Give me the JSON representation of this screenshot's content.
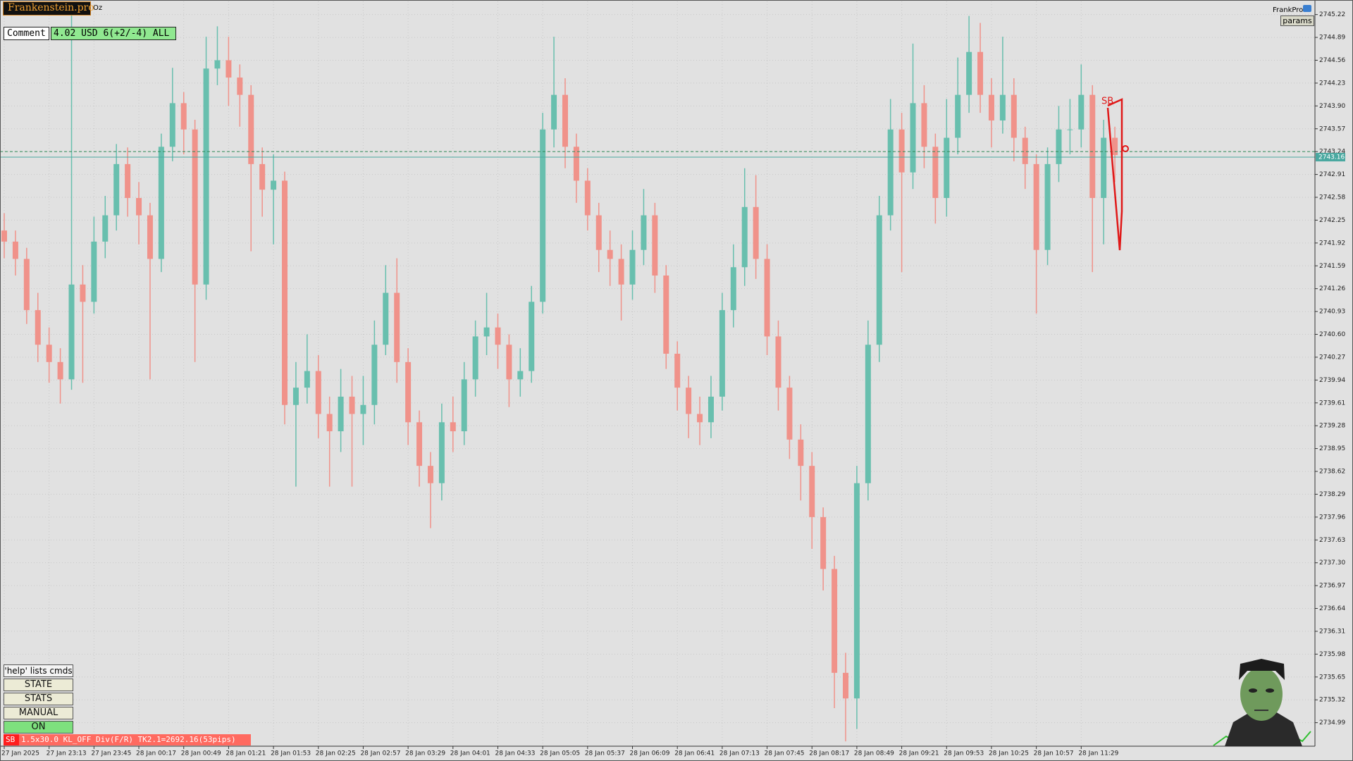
{
  "chart_data": {
    "type": "candlestick",
    "categories": [
      "27 Jan 2025",
      null,
      null,
      null,
      "27 Jan 23:13",
      null,
      null,
      null,
      "27 Jan 23:45",
      null,
      null,
      null,
      "28 Jan 00:17",
      null,
      null,
      null,
      "28 Jan 00:49",
      null,
      null,
      null,
      "28 Jan 01:21",
      null,
      null,
      null,
      "28 Jan 01:53",
      null,
      null,
      null,
      "28 Jan 02:25",
      null,
      null,
      null,
      "28 Jan 02:57",
      null,
      null,
      null,
      "28 Jan 03:29",
      null,
      null,
      null,
      "28 Jan 04:01",
      null,
      null,
      null,
      "28 Jan 04:33",
      null,
      null,
      null,
      "28 Jan 05:05",
      null,
      null,
      null,
      "28 Jan 05:37",
      null,
      null,
      null,
      "28 Jan 06:09",
      null,
      null,
      null,
      "28 Jan 06:41",
      null,
      null,
      null,
      "28 Jan 07:13",
      null,
      null,
      null,
      "28 Jan 07:45",
      null,
      null,
      null,
      "28 Jan 08:17",
      null,
      null,
      null,
      "28 Jan 08:49",
      null,
      null,
      null,
      "28 Jan 09:21",
      null,
      null,
      null,
      "28 Jan 09:53",
      null,
      null,
      null,
      "28 Jan 10:25",
      null,
      null,
      null,
      "28 Jan 10:57",
      null,
      null,
      null,
      "28 Jan 11:29",
      null,
      null,
      null
    ],
    "open": [
      2742.1,
      2741.94,
      2741.69,
      2740.95,
      2740.45,
      2740.2,
      2739.95,
      2741.32,
      2741.07,
      2741.94,
      2742.32,
      2743.06,
      2742.57,
      2742.32,
      2741.69,
      2743.31,
      2743.94,
      2743.56,
      2741.32,
      2744.44,
      2744.56,
      2744.31,
      2744.06,
      2743.06,
      2742.69,
      2742.82,
      2739.58,
      2739.83,
      2740.07,
      2739.45,
      2739.2,
      2739.7,
      2739.45,
      2739.58,
      2740.45,
      2741.2,
      2740.2,
      2739.33,
      2738.7,
      2738.45,
      2739.33,
      2739.2,
      2739.95,
      2740.57,
      2740.7,
      2740.45,
      2739.95,
      2740.07,
      2741.07,
      2743.56,
      2744.06,
      2743.31,
      2742.82,
      2742.32,
      2741.82,
      2741.69,
      2741.32,
      2741.82,
      2742.32,
      2741.45,
      2740.32,
      2739.83,
      2739.45,
      2739.33,
      2739.7,
      2740.95,
      2741.57,
      2742.44,
      2741.69,
      2740.57,
      2739.83,
      2739.08,
      2738.7,
      2737.96,
      2737.21,
      2735.71,
      2735.34,
      2738.45,
      2740.45,
      2742.32,
      2743.56,
      2742.94,
      2743.94,
      2743.31,
      2742.57,
      2743.44,
      2744.06,
      2744.68,
      2744.06,
      2743.69,
      2744.06,
      2743.44,
      2743.06,
      2741.82,
      2743.06,
      2743.56,
      2743.56,
      2744.06,
      2742.57,
      2743.44
    ],
    "high": [
      2742.35,
      2742.1,
      2741.85,
      2741.2,
      2740.7,
      2740.4,
      2745.3,
      2741.6,
      2742.3,
      2742.6,
      2743.35,
      2743.3,
      2742.8,
      2742.5,
      2743.5,
      2744.45,
      2744.1,
      2743.7,
      2744.9,
      2745.05,
      2744.9,
      2744.5,
      2744.2,
      2743.3,
      2743.2,
      2742.95,
      2740.2,
      2740.6,
      2740.3,
      2739.7,
      2740.1,
      2740.0,
      2740.0,
      2740.8,
      2741.6,
      2741.7,
      2740.4,
      2739.5,
      2738.9,
      2739.6,
      2739.7,
      2740.2,
      2740.8,
      2741.2,
      2740.9,
      2740.6,
      2740.4,
      2741.3,
      2743.8,
      2744.9,
      2744.3,
      2743.5,
      2743.0,
      2742.5,
      2742.1,
      2741.9,
      2742.1,
      2742.7,
      2742.5,
      2741.6,
      2740.5,
      2740.0,
      2739.7,
      2740.0,
      2741.2,
      2741.9,
      2743.0,
      2742.9,
      2741.9,
      2740.8,
      2740.0,
      2739.3,
      2738.9,
      2738.1,
      2737.4,
      2736.0,
      2738.7,
      2740.8,
      2742.6,
      2744.0,
      2743.8,
      2744.8,
      2744.2,
      2743.5,
      2744.0,
      2744.6,
      2745.2,
      2745.1,
      2744.3,
      2744.9,
      2744.3,
      2743.6,
      2743.2,
      2743.3,
      2743.9,
      2744.0,
      2744.5,
      2744.2,
      2743.7,
      2743.6
    ],
    "low": [
      2741.7,
      2741.45,
      2740.75,
      2740.2,
      2739.9,
      2739.6,
      2739.8,
      2739.9,
      2740.9,
      2741.7,
      2742.1,
      2742.3,
      2741.9,
      2739.95,
      2741.5,
      2743.1,
      2743.2,
      2740.2,
      2741.1,
      2744.2,
      2743.9,
      2743.6,
      2741.8,
      2742.3,
      2741.9,
      2739.3,
      2738.4,
      2739.6,
      2739.1,
      2738.4,
      2738.9,
      2738.4,
      2739.0,
      2739.3,
      2740.3,
      2739.9,
      2739.0,
      2738.4,
      2737.8,
      2738.2,
      2738.9,
      2739.0,
      2739.7,
      2740.3,
      2740.1,
      2739.55,
      2739.7,
      2739.9,
      2740.9,
      2743.3,
      2743.0,
      2742.5,
      2742.1,
      2741.5,
      2741.3,
      2740.8,
      2741.1,
      2741.6,
      2741.2,
      2740.1,
      2739.5,
      2739.1,
      2739.0,
      2739.1,
      2739.5,
      2740.7,
      2741.3,
      2741.4,
      2740.3,
      2739.5,
      2738.8,
      2738.2,
      2737.5,
      2736.9,
      2735.2,
      2734.72,
      2734.9,
      2738.2,
      2740.2,
      2742.1,
      2741.5,
      2742.7,
      2743.0,
      2742.2,
      2742.3,
      2743.2,
      2743.8,
      2743.8,
      2743.3,
      2743.5,
      2743.1,
      2742.7,
      2740.9,
      2741.6,
      2742.8,
      2743.2,
      2743.3,
      2741.5,
      2741.9,
      2742.8
    ],
    "close": [
      2741.94,
      2741.69,
      2740.95,
      2740.45,
      2740.2,
      2739.95,
      2741.32,
      2741.07,
      2741.94,
      2742.32,
      2743.06,
      2742.57,
      2742.32,
      2741.69,
      2743.31,
      2743.94,
      2743.56,
      2741.32,
      2744.44,
      2744.56,
      2744.31,
      2744.06,
      2743.06,
      2742.69,
      2742.82,
      2739.58,
      2739.83,
      2740.07,
      2739.45,
      2739.2,
      2739.7,
      2739.45,
      2739.58,
      2740.45,
      2741.2,
      2740.2,
      2739.33,
      2738.7,
      2738.45,
      2739.33,
      2739.2,
      2739.95,
      2740.57,
      2740.7,
      2740.45,
      2739.95,
      2740.07,
      2741.07,
      2743.56,
      2744.06,
      2743.31,
      2742.82,
      2742.32,
      2741.82,
      2741.69,
      2741.32,
      2741.82,
      2742.32,
      2741.45,
      2740.32,
      2739.83,
      2739.45,
      2739.33,
      2739.7,
      2740.95,
      2741.57,
      2742.44,
      2741.69,
      2740.57,
      2739.83,
      2739.08,
      2738.7,
      2737.96,
      2737.21,
      2735.71,
      2735.34,
      2738.45,
      2740.45,
      2742.32,
      2743.56,
      2742.94,
      2743.94,
      2743.31,
      2742.57,
      2743.44,
      2744.06,
      2744.68,
      2744.06,
      2743.69,
      2744.06,
      2743.44,
      2743.06,
      2741.82,
      2743.06,
      2743.56,
      2743.56,
      2744.06,
      2742.57,
      2743.44,
      2743.19
    ],
    "bull_color": "#68bfae",
    "bear_color": "#f0928a",
    "ylim": [
      2734.65,
      2745.41
    ],
    "yticks": [
      2745.22,
      2744.89,
      2744.56,
      2744.23,
      {
        "value": 2743.9,
        "label": "2743.90"
      },
      2743.57,
      2743.24,
      2742.91,
      2742.58,
      2742.25,
      2741.92,
      2741.59,
      2741.26,
      2740.93,
      {
        "value": 2740.6,
        "label": "2740.60"
      },
      2740.27,
      2739.94,
      2739.61,
      2739.28,
      2738.95,
      2738.62,
      2738.29,
      2737.96,
      2737.63,
      {
        "value": 2737.3,
        "label": "2737.30"
      },
      2736.97,
      2736.64,
      2736.31,
      2735.98,
      2735.65,
      2735.32,
      2734.99
    ],
    "grid": true,
    "current_price": 2743.16,
    "ask_line": 2743.24,
    "annotation": "SB"
  },
  "ui": {
    "brand": "Frankenstein.pro",
    "period": "Oz",
    "comment_label": "Comment",
    "comment_value": "4.02 USD 6(+2/-4) ALL",
    "expert": "FrankPro",
    "params": "params",
    "help": "'help' lists cmds",
    "buttons": [
      "STATE",
      "STATS",
      "MANUAL",
      "ON"
    ],
    "status_tag": "SB",
    "status_text": "1.5x30.0 KL_OFF Div(F/R) TK2.1=2692.16(53pips)"
  }
}
